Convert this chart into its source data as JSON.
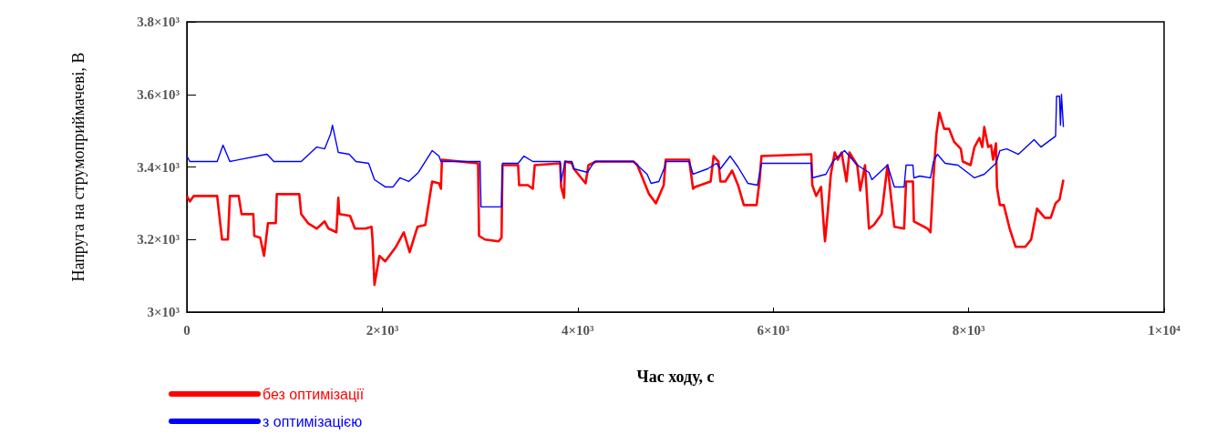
{
  "chart_data": {
    "type": "line",
    "xlabel": "Час ходу, с",
    "ylabel": "Напруга на струмоприймачеві, В",
    "xlim": [
      0,
      10000
    ],
    "xticks": [
      0,
      {
        "value": 2000,
        "label": "2×10³"
      },
      {
        "value": 4000,
        "label": "4×10³"
      },
      {
        "value": 6000,
        "label": "6×10³"
      },
      {
        "value": 8000,
        "label": "8×10³"
      },
      {
        "value": 10000,
        "label": "1×10⁴"
      }
    ],
    "ylim": [
      3000,
      3800
    ],
    "yticks": [
      {
        "value": 3000,
        "label": "3×10³"
      },
      {
        "value": 3200,
        "label": "3.2×10³"
      },
      {
        "value": 3400,
        "label": "3.4×10³"
      },
      {
        "value": 3600,
        "label": "3.6×10³"
      },
      {
        "value": 3800,
        "label": "3.8×10³"
      }
    ],
    "grid": false,
    "legend": "bottom left",
    "marker": "none",
    "line_style": "solid",
    "series": [
      {
        "name": "без оптимізації",
        "color": "#ff0000",
        "x": [
          0,
          30,
          70,
          310,
          360,
          420,
          440,
          530,
          560,
          680,
          690,
          750,
          790,
          830,
          910,
          920,
          1150,
          1170,
          1240,
          1330,
          1410,
          1450,
          1530,
          1550,
          1560,
          1670,
          1720,
          1830,
          1890,
          1900,
          1920,
          1970,
          2030,
          2140,
          2220,
          2280,
          2360,
          2440,
          2510,
          2580,
          2600,
          2610,
          2980,
          2990,
          3050,
          3190,
          3220,
          3230,
          3390,
          3400,
          3490,
          3540,
          3560,
          3820,
          3830,
          3860,
          3870,
          3940,
          3960,
          4080,
          4110,
          4190,
          4570,
          4610,
          4730,
          4800,
          4880,
          4900,
          5140,
          5180,
          5200,
          5360,
          5390,
          5440,
          5460,
          5510,
          5580,
          5640,
          5700,
          5830,
          5860,
          5880,
          6390,
          6400,
          6440,
          6490,
          6520,
          6530,
          6560,
          6590,
          6630,
          6660,
          6700,
          6750,
          6780,
          6860,
          6890,
          6940,
          6980,
          7030,
          7110,
          7170,
          7240,
          7340,
          7360,
          7430,
          7440,
          7580,
          7610,
          7640,
          7670,
          7700,
          7750,
          7800,
          7850,
          7920,
          7940,
          8020,
          8060,
          8110,
          8140,
          8160,
          8200,
          8230,
          8250,
          8280,
          8290,
          8320,
          8360,
          8420,
          8480,
          8580,
          8640,
          8700,
          8780,
          8840,
          8890,
          8930,
          8970
        ],
        "values": [
          3320,
          3305,
          3320,
          3320,
          3200,
          3200,
          3320,
          3320,
          3270,
          3270,
          3210,
          3205,
          3155,
          3245,
          3245,
          3325,
          3325,
          3270,
          3245,
          3230,
          3250,
          3230,
          3220,
          3315,
          3270,
          3265,
          3230,
          3230,
          3235,
          3200,
          3075,
          3155,
          3140,
          3180,
          3220,
          3165,
          3235,
          3240,
          3360,
          3355,
          3340,
          3420,
          3410,
          3210,
          3200,
          3195,
          3205,
          3405,
          3405,
          3350,
          3350,
          3340,
          3405,
          3410,
          3345,
          3315,
          3415,
          3410,
          3395,
          3355,
          3405,
          3415,
          3415,
          3405,
          3325,
          3300,
          3350,
          3420,
          3420,
          3340,
          3345,
          3360,
          3430,
          3415,
          3360,
          3360,
          3390,
          3350,
          3295,
          3295,
          3360,
          3430,
          3435,
          3350,
          3320,
          3345,
          3230,
          3195,
          3280,
          3380,
          3440,
          3420,
          3440,
          3360,
          3440,
          3405,
          3335,
          3405,
          3230,
          3240,
          3270,
          3405,
          3235,
          3230,
          3360,
          3360,
          3250,
          3230,
          3220,
          3370,
          3490,
          3550,
          3505,
          3505,
          3470,
          3450,
          3415,
          3405,
          3455,
          3480,
          3455,
          3510,
          3455,
          3460,
          3420,
          3465,
          3345,
          3295,
          3295,
          3230,
          3180,
          3180,
          3200,
          3285,
          3260,
          3260,
          3300,
          3310,
          3365
        ]
      },
      {
        "name": "з оптимізацією",
        "color": "#0000ff",
        "x": [
          0,
          30,
          310,
          370,
          440,
          820,
          890,
          1170,
          1330,
          1410,
          1470,
          1490,
          1550,
          1660,
          1730,
          1860,
          1920,
          2030,
          2110,
          2180,
          2270,
          2370,
          2510,
          2580,
          2600,
          3000,
          3010,
          3220,
          3230,
          3390,
          3450,
          3540,
          3820,
          3830,
          3870,
          3940,
          3960,
          4100,
          4170,
          4570,
          4710,
          4750,
          4830,
          4890,
          4900,
          5140,
          5180,
          5330,
          5420,
          5460,
          5560,
          5640,
          5740,
          5840,
          5880,
          6390,
          6400,
          6540,
          6610,
          6730,
          6860,
          6980,
          7010,
          7170,
          7240,
          7340,
          7360,
          7430,
          7440,
          7500,
          7610,
          7640,
          7680,
          7760,
          7890,
          8060,
          8160,
          8280,
          8320,
          8390,
          8510,
          8670,
          8740,
          8890,
          8900,
          8930,
          8940,
          8950,
          8970
        ],
        "values": [
          3430,
          3415,
          3415,
          3460,
          3415,
          3435,
          3415,
          3415,
          3455,
          3450,
          3490,
          3515,
          3440,
          3435,
          3415,
          3410,
          3365,
          3345,
          3345,
          3370,
          3360,
          3385,
          3445,
          3430,
          3415,
          3415,
          3290,
          3290,
          3410,
          3410,
          3430,
          3415,
          3415,
          3360,
          3415,
          3415,
          3395,
          3385,
          3415,
          3415,
          3380,
          3355,
          3360,
          3400,
          3415,
          3415,
          3380,
          3395,
          3410,
          3395,
          3430,
          3400,
          3355,
          3350,
          3410,
          3410,
          3370,
          3380,
          3415,
          3445,
          3405,
          3385,
          3365,
          3405,
          3345,
          3345,
          3405,
          3405,
          3370,
          3375,
          3370,
          3415,
          3435,
          3410,
          3405,
          3370,
          3380,
          3410,
          3445,
          3450,
          3435,
          3475,
          3455,
          3485,
          3595,
          3595,
          3515,
          3600,
          3510
        ]
      }
    ]
  }
}
